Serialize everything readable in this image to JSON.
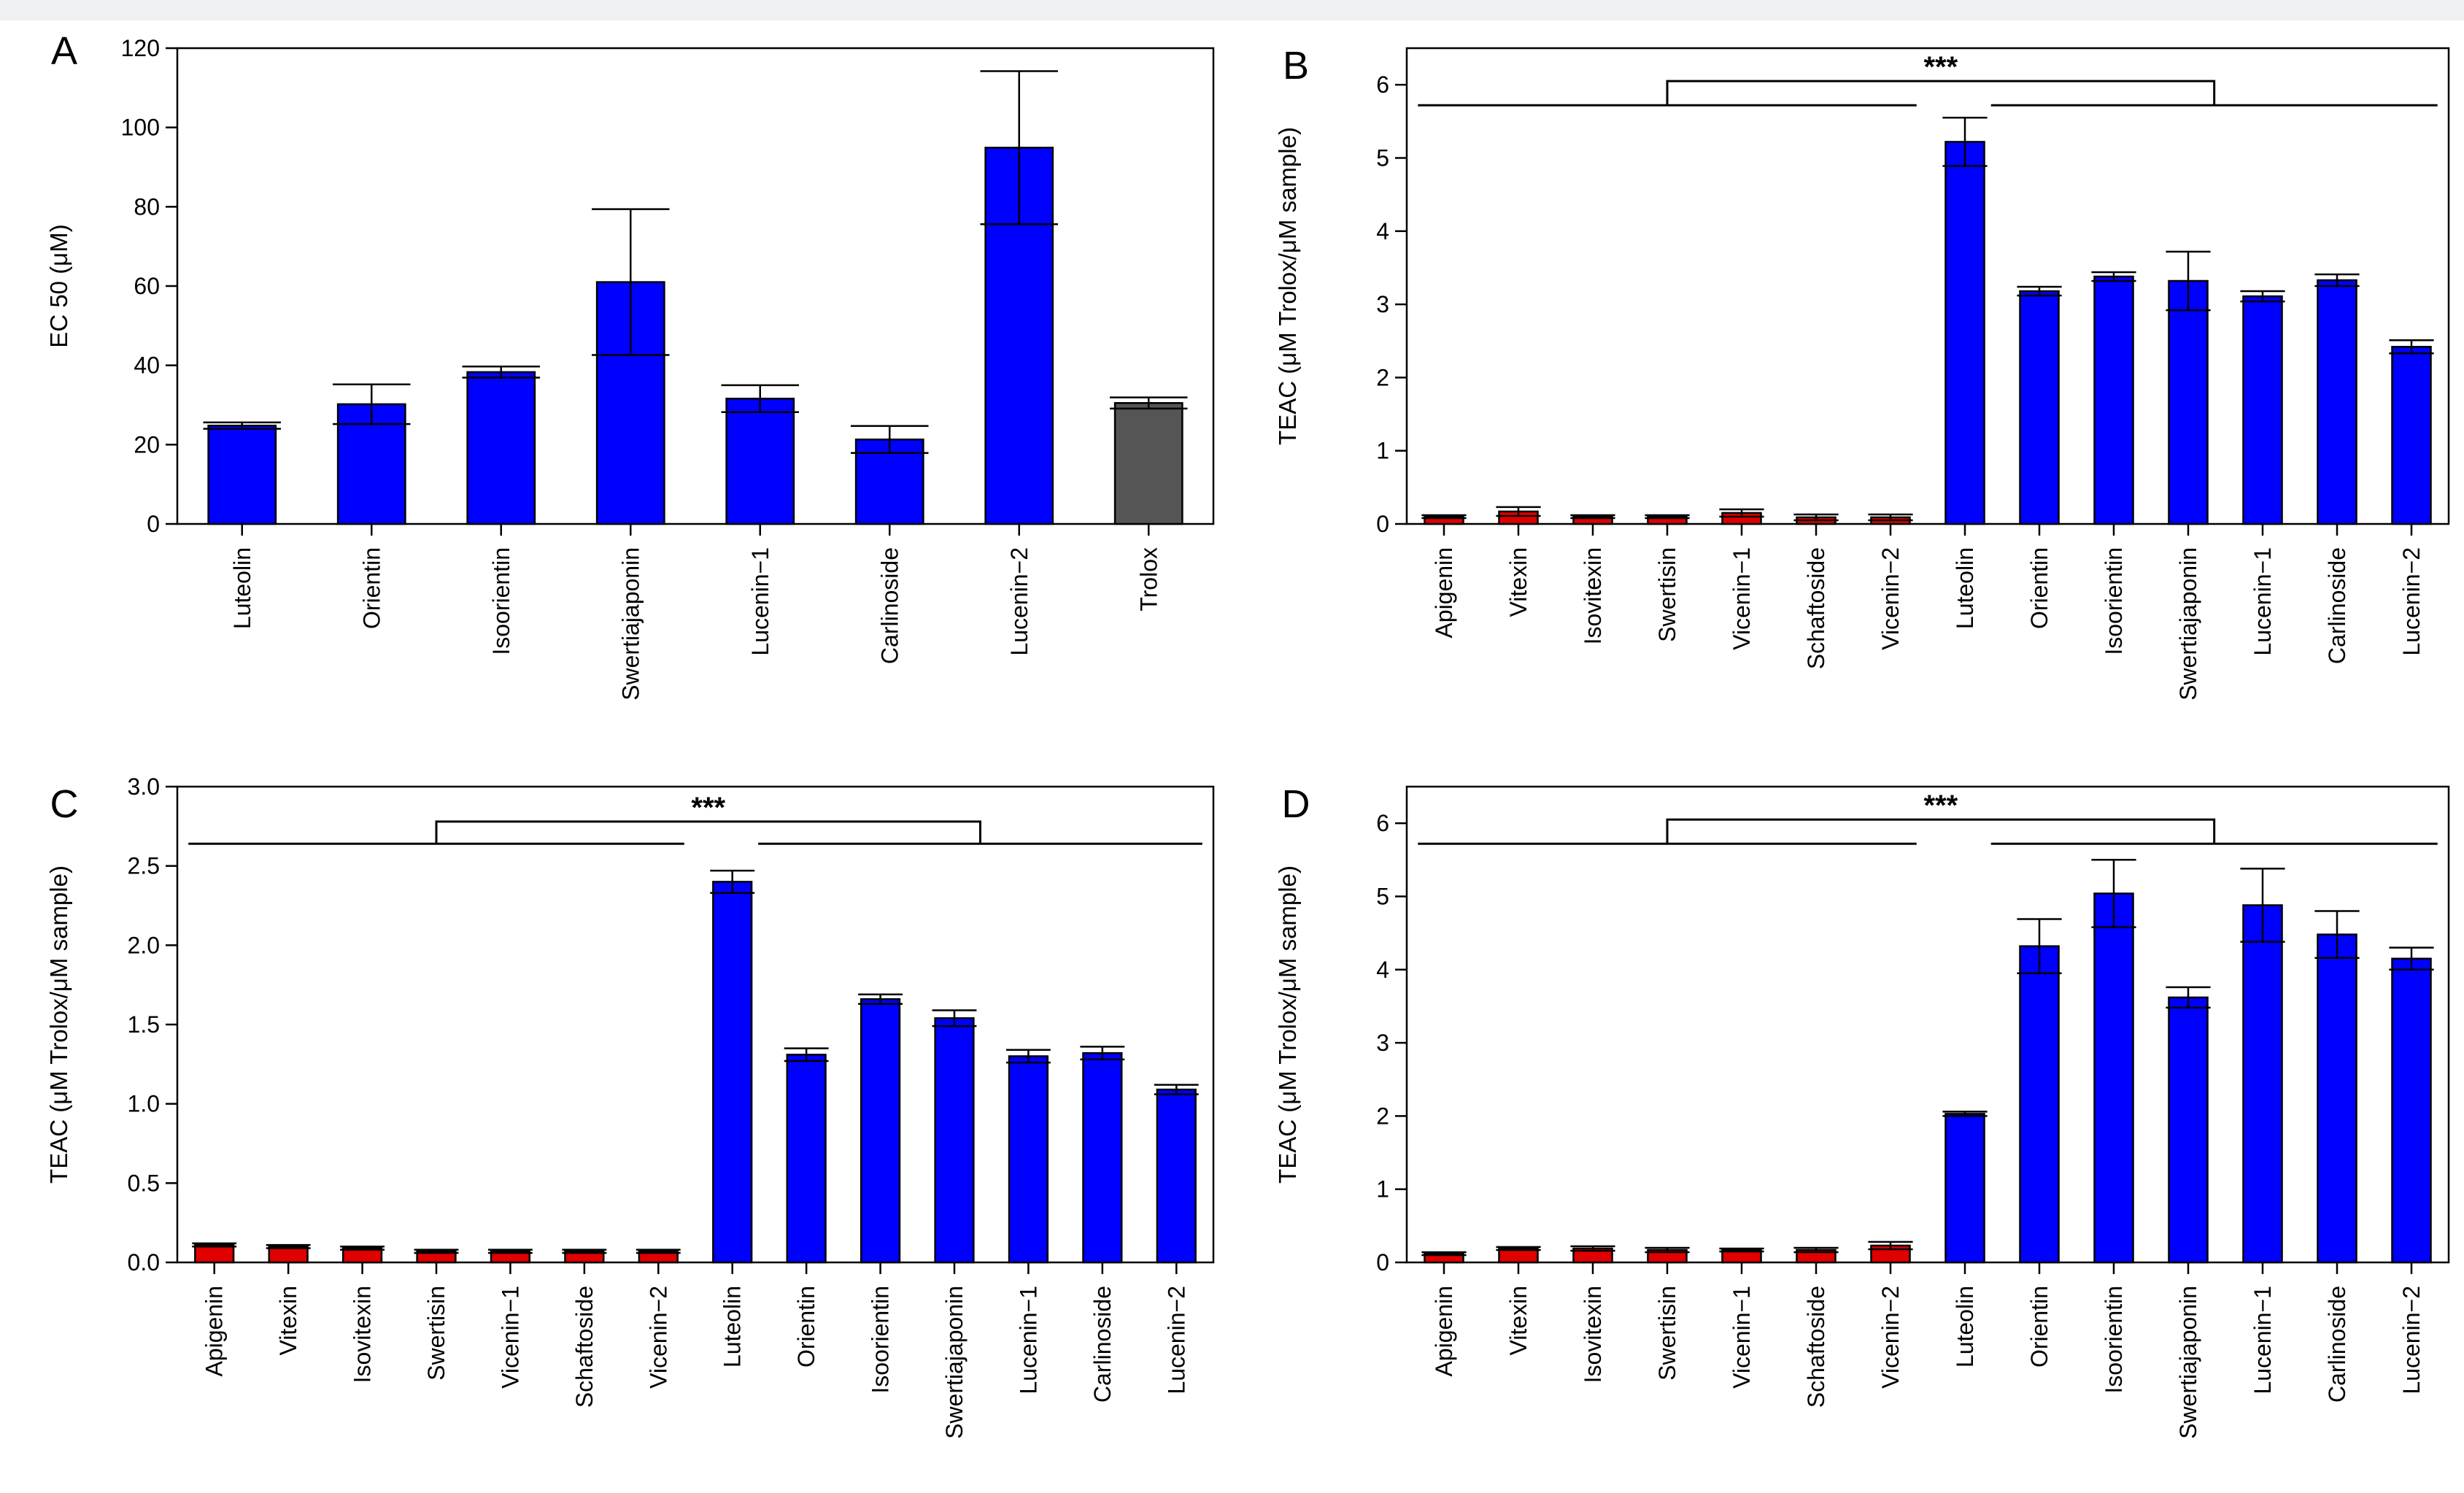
{
  "colors": {
    "blue": "#0000ff",
    "red": "#e00000",
    "gray": "#555555",
    "axis": "#000000"
  },
  "chart_data": [
    {
      "id": "A",
      "panel_label": "A",
      "type": "bar",
      "ylabel": "EC 50 (μM)",
      "ylim": [
        0,
        120
      ],
      "yticks": [
        0,
        20,
        40,
        60,
        80,
        100,
        120
      ],
      "tick_labels": [
        "0",
        "20",
        "40",
        "60",
        "80",
        "100",
        "120"
      ],
      "categories": [
        "Luteolin",
        "Orientin",
        "Isoorientin",
        "Swertiajaponin",
        "Lucenin−1",
        "Carlinoside",
        "Lucenin−2",
        "Trolox"
      ],
      "values": [
        24.8,
        30.2,
        38.3,
        61.0,
        31.6,
        21.3,
        94.9,
        30.5
      ],
      "errors": [
        0.8,
        5.0,
        1.4,
        18.4,
        3.4,
        3.4,
        19.3,
        1.4
      ],
      "bar_colors": [
        "blue",
        "blue",
        "blue",
        "blue",
        "blue",
        "blue",
        "blue",
        "gray"
      ],
      "significance": null
    },
    {
      "id": "B",
      "panel_label": "B",
      "type": "bar",
      "ylabel": "TEAC (μM Trolox/μM sample)",
      "ylim": [
        0,
        6.5
      ],
      "yticks": [
        0,
        1,
        2,
        3,
        4,
        5,
        6
      ],
      "tick_labels": [
        "0",
        "1",
        "2",
        "3",
        "4",
        "5",
        "6"
      ],
      "categories": [
        "Apigenin",
        "Vitexin",
        "Isovitexin",
        "Swertisin",
        "Vicenin−1",
        "Schaftoside",
        "Vicenin−2",
        "Luteolin",
        "Orientin",
        "Isoorientin",
        "Swertiajaponin",
        "Lucenin−1",
        "Carlinoside",
        "Lucenin−2"
      ],
      "values": [
        0.1,
        0.17,
        0.1,
        0.1,
        0.15,
        0.09,
        0.09,
        5.22,
        3.18,
        3.38,
        3.32,
        3.11,
        3.33,
        2.42
      ],
      "errors": [
        0.02,
        0.06,
        0.02,
        0.02,
        0.05,
        0.04,
        0.04,
        0.33,
        0.06,
        0.06,
        0.4,
        0.07,
        0.08,
        0.09
      ],
      "bar_colors": [
        "red",
        "red",
        "red",
        "red",
        "red",
        "red",
        "red",
        "blue",
        "blue",
        "blue",
        "blue",
        "blue",
        "blue",
        "blue"
      ],
      "significance": {
        "label": "***",
        "line_y": 5.72,
        "top_y": 6.05
      }
    },
    {
      "id": "C",
      "panel_label": "C",
      "type": "bar",
      "ylabel": "TEAC (μM Trolox/μM sample)",
      "ylim": [
        0,
        3.0
      ],
      "yticks": [
        0,
        0.5,
        1.0,
        1.5,
        2.0,
        2.5,
        3.0
      ],
      "tick_labels": [
        "0.0",
        "0.5",
        "1.0",
        "1.5",
        "2.0",
        "2.5",
        "3.0"
      ],
      "categories": [
        "Apigenin",
        "Vitexin",
        "Isovitexin",
        "Swertisin",
        "Vicenin−1",
        "Schaftoside",
        "Vicenin−2",
        "Luteolin",
        "Orientin",
        "Isoorientin",
        "Swertiajaponin",
        "Lucenin−1",
        "Carlinoside",
        "Lucenin−2"
      ],
      "values": [
        0.11,
        0.1,
        0.09,
        0.07,
        0.07,
        0.07,
        0.07,
        2.4,
        1.31,
        1.66,
        1.54,
        1.3,
        1.32,
        1.09
      ],
      "errors": [
        0.01,
        0.01,
        0.01,
        0.01,
        0.01,
        0.01,
        0.01,
        0.07,
        0.04,
        0.03,
        0.05,
        0.04,
        0.04,
        0.03
      ],
      "bar_colors": [
        "red",
        "red",
        "red",
        "red",
        "red",
        "red",
        "red",
        "blue",
        "blue",
        "blue",
        "blue",
        "blue",
        "blue",
        "blue"
      ],
      "significance": {
        "label": "***",
        "line_y": 2.64,
        "top_y": 2.78
      }
    },
    {
      "id": "D",
      "panel_label": "D",
      "type": "bar",
      "ylabel": "TEAC (μM Trolox/μM sample)",
      "ylim": [
        0,
        6.5
      ],
      "yticks": [
        0,
        1,
        2,
        3,
        4,
        5,
        6
      ],
      "tick_labels": [
        "0",
        "1",
        "2",
        "3",
        "4",
        "5",
        "6"
      ],
      "categories": [
        "Apigenin",
        "Vitexin",
        "Isovitexin",
        "Swertisin",
        "Vicenin−1",
        "Schaftoside",
        "Vicenin−2",
        "Luteolin",
        "Orientin",
        "Isoorientin",
        "Swertiajaponin",
        "Lucenin−1",
        "Carlinoside",
        "Lucenin−2"
      ],
      "values": [
        0.12,
        0.19,
        0.19,
        0.17,
        0.17,
        0.17,
        0.23,
        2.03,
        4.32,
        5.04,
        3.62,
        4.88,
        4.48,
        4.15
      ],
      "errors": [
        0.02,
        0.02,
        0.03,
        0.03,
        0.02,
        0.03,
        0.05,
        0.03,
        0.37,
        0.46,
        0.14,
        0.5,
        0.32,
        0.15
      ],
      "bar_colors": [
        "red",
        "red",
        "red",
        "red",
        "red",
        "red",
        "red",
        "blue",
        "blue",
        "blue",
        "blue",
        "blue",
        "blue",
        "blue"
      ],
      "significance": {
        "label": "***",
        "line_y": 5.72,
        "top_y": 6.05
      }
    }
  ]
}
